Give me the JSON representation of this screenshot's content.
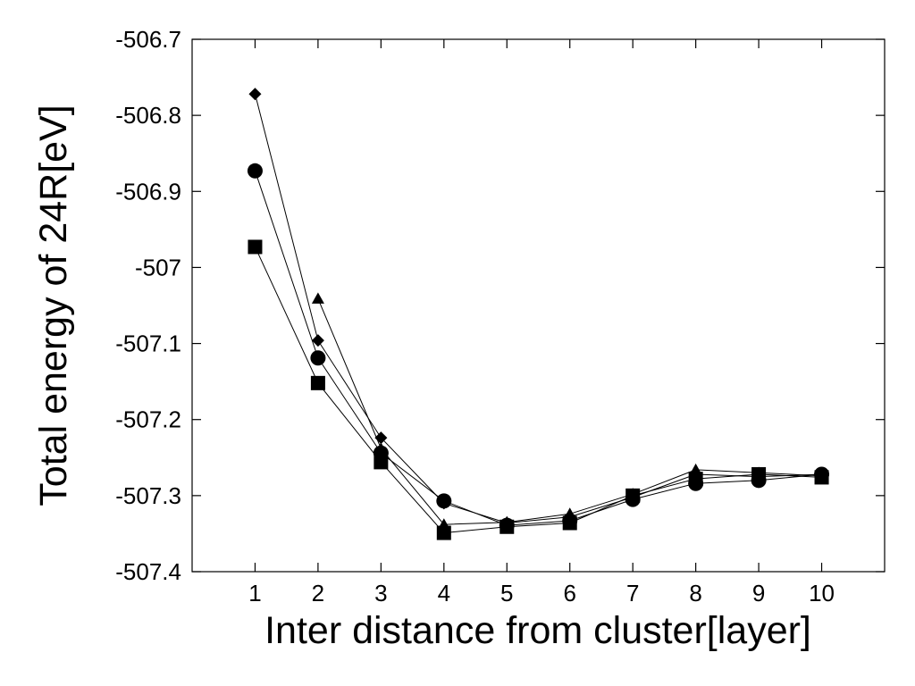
{
  "chart_data": {
    "type": "line",
    "title": "",
    "xlabel": "Inter distance from cluster[layer]",
    "ylabel": "Total energy of 24R[eV]",
    "xlim": [
      0,
      11
    ],
    "ylim": [
      -507.4,
      -506.7
    ],
    "x_ticks": [
      1,
      2,
      3,
      4,
      5,
      6,
      7,
      8,
      9,
      10
    ],
    "x_tick_labels": [
      "1",
      "2",
      "3",
      "4",
      "5",
      "6",
      "7",
      "8",
      "9",
      "10"
    ],
    "y_ticks": [
      -506.7,
      -506.8,
      -506.9,
      -507.0,
      -507.1,
      -507.2,
      -507.3,
      -507.4
    ],
    "y_tick_labels": [
      "-506.7",
      "-506.8",
      "-506.9",
      "-507",
      "-507.1",
      "-507.2",
      "-507.3",
      "-507.4"
    ],
    "grid": false,
    "legend": "none",
    "series": [
      {
        "marker": "diamond",
        "color": "#000000",
        "x": [
          1,
          2,
          3,
          4,
          5,
          6,
          7,
          8,
          9,
          10
        ],
        "y": [
          -506.772,
          -507.096,
          -507.224,
          -507.31,
          -507.336,
          -507.328,
          -507.302,
          -507.272,
          -507.275,
          -507.272
        ]
      },
      {
        "marker": "circle",
        "color": "#000000",
        "x": [
          1,
          2,
          3,
          4,
          5,
          6,
          7,
          8,
          9,
          10
        ],
        "y": [
          -506.873,
          -507.119,
          -507.244,
          -507.307,
          -507.339,
          -507.333,
          -507.305,
          -507.284,
          -507.28,
          -507.272
        ]
      },
      {
        "marker": "square",
        "color": "#000000",
        "x": [
          1,
          2,
          3,
          4,
          5,
          6,
          7,
          8,
          9,
          10
        ],
        "y": [
          -506.973,
          -507.152,
          -507.256,
          -507.349,
          -507.341,
          -507.336,
          -507.3,
          -507.278,
          -507.272,
          -507.276
        ]
      },
      {
        "marker": "triangle",
        "color": "#000000",
        "x": [
          2,
          3,
          4,
          5,
          6,
          7,
          8,
          9,
          10
        ],
        "y": [
          -507.041,
          -507.238,
          -507.338,
          -507.335,
          -507.324,
          -507.298,
          -507.266,
          -507.27,
          -507.274
        ]
      }
    ]
  }
}
